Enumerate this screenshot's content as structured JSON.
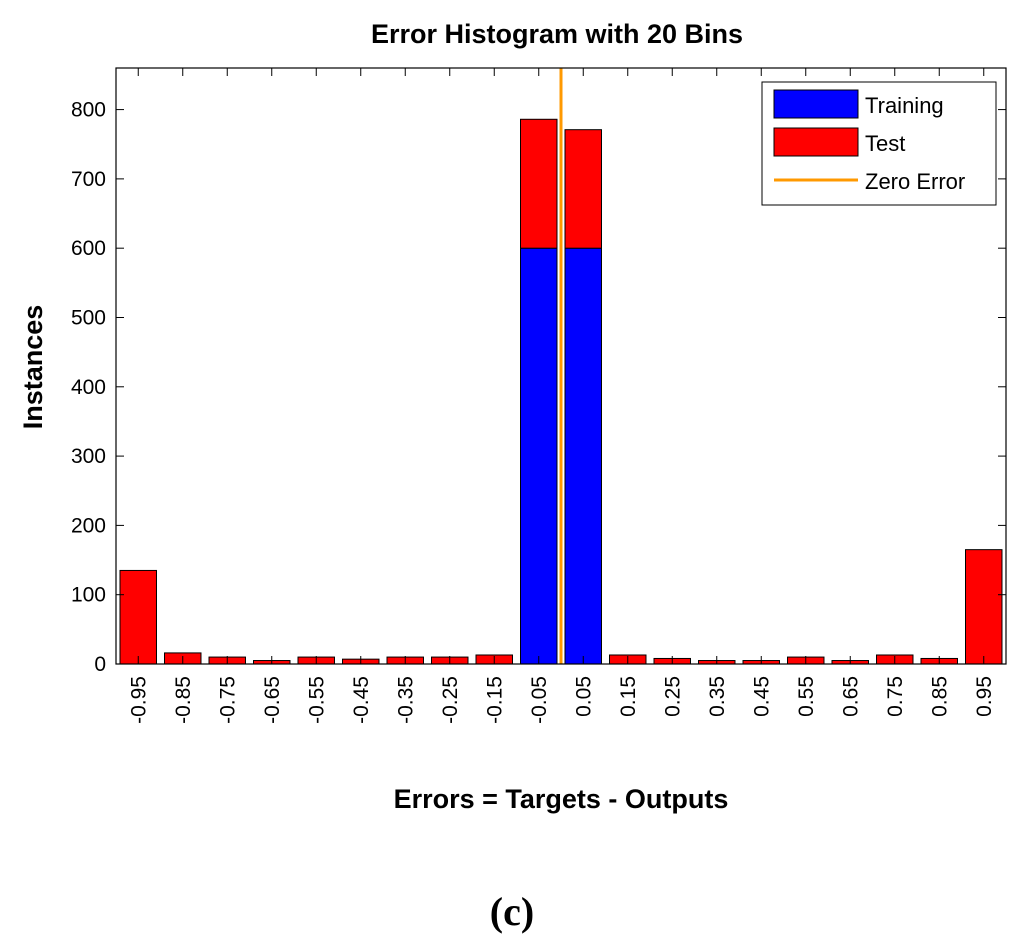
{
  "chart_data": {
    "type": "bar",
    "stacked": true,
    "title": "Error Histogram with 20 Bins",
    "xlabel": "Errors = Targets - Outputs",
    "ylabel": "Instances",
    "ylim": [
      0,
      860
    ],
    "yticks": [
      0,
      100,
      200,
      300,
      400,
      500,
      600,
      700,
      800
    ],
    "categories": [
      "-0.95",
      "-0.85",
      "-0.75",
      "-0.65",
      "-0.55",
      "-0.45",
      "-0.35",
      "-0.25",
      "-0.15",
      "-0.05",
      "0.05",
      "0.15",
      "0.25",
      "0.35",
      "0.45",
      "0.55",
      "0.65",
      "0.75",
      "0.85",
      "0.95"
    ],
    "series": [
      {
        "name": "Training",
        "color": "#0000ff",
        "values": [
          0,
          0,
          0,
          0,
          0,
          0,
          0,
          0,
          0,
          600,
          600,
          0,
          0,
          0,
          0,
          0,
          0,
          0,
          0,
          0
        ]
      },
      {
        "name": "Test",
        "color": "#ff0000",
        "values": [
          135,
          16,
          10,
          5,
          10,
          7,
          10,
          10,
          13,
          186,
          171,
          13,
          8,
          5,
          5,
          10,
          5,
          13,
          8,
          165
        ]
      }
    ],
    "reference_line": {
      "name": "Zero Error",
      "x": 0,
      "color": "#ff9900"
    },
    "legend_position": "top-right",
    "grid": false
  },
  "caption": "(c)"
}
